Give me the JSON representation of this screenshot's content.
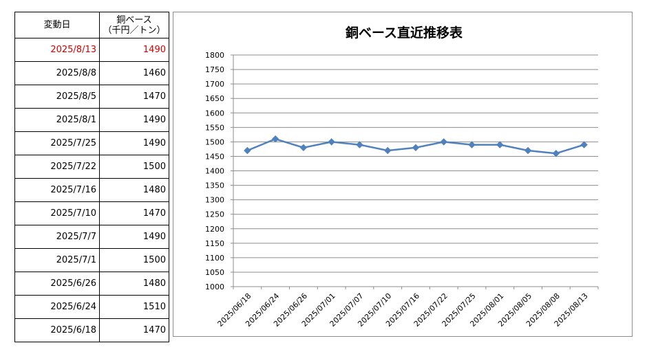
{
  "table": {
    "header": {
      "date": "変動日",
      "value_line1": "銅ベース",
      "value_line2": "（千円／トン）"
    },
    "rows": [
      {
        "date": "2025/8/13",
        "value": "1490",
        "highlight": true
      },
      {
        "date": "2025/8/8",
        "value": "1460"
      },
      {
        "date": "2025/8/5",
        "value": "1470"
      },
      {
        "date": "2025/8/1",
        "value": "1490"
      },
      {
        "date": "2025/7/25",
        "value": "1490"
      },
      {
        "date": "2025/7/22",
        "value": "1500"
      },
      {
        "date": "2025/7/16",
        "value": "1480"
      },
      {
        "date": "2025/7/10",
        "value": "1470"
      },
      {
        "date": "2025/7/7",
        "value": "1490"
      },
      {
        "date": "2025/7/1",
        "value": "1500"
      },
      {
        "date": "2025/6/26",
        "value": "1480"
      },
      {
        "date": "2025/6/24",
        "value": "1510"
      },
      {
        "date": "2025/6/18",
        "value": "1470"
      }
    ],
    "highlight_color": "#d40000"
  },
  "chart_data": {
    "type": "line",
    "title": "銅ベース直近推移表",
    "xlabel": "",
    "ylabel": "",
    "categories": [
      "2025/06/18",
      "2025/06/24",
      "2025/06/26",
      "2025/07/01",
      "2025/07/07",
      "2025/07/10",
      "2025/07/16",
      "2025/07/22",
      "2025/07/25",
      "2025/08/01",
      "2025/08/05",
      "2025/08/08",
      "2025/08/13"
    ],
    "series": [
      {
        "values": [
          1470,
          1510,
          1480,
          1500,
          1490,
          1470,
          1480,
          1500,
          1490,
          1490,
          1470,
          1460,
          1490
        ],
        "color": "#4f81bd"
      }
    ],
    "ylim": [
      1000,
      1800
    ],
    "ytick_step": 50,
    "grid": true,
    "legend": "none",
    "marker": "diamond"
  }
}
